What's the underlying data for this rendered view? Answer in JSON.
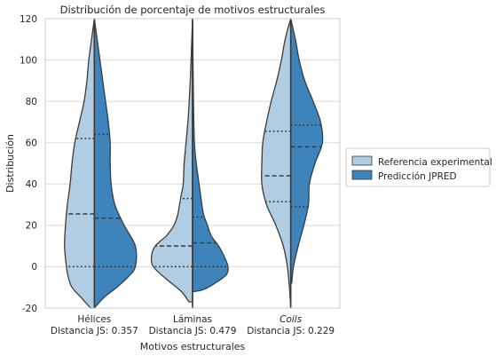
{
  "chart_data": {
    "type": "violin",
    "title": "Distribución de porcentaje de motivos estructurales",
    "xlabel": "Motivos estructurales",
    "ylabel": "Distribución",
    "ylim": [
      -20,
      120
    ],
    "yticks": [
      -20,
      0,
      20,
      40,
      60,
      80,
      100,
      120
    ],
    "grid": "horizontal",
    "legend_position": "right",
    "categories": [
      {
        "name": "Hélices",
        "italic": false,
        "subtitle": "Distancia JS: 0.357"
      },
      {
        "name": "Láminas",
        "italic": false,
        "subtitle": "Distancia JS: 0.479"
      },
      {
        "name": "Coils",
        "italic": true,
        "subtitle": "Distancia JS: 0.229"
      }
    ],
    "series": [
      {
        "name": "Referencia experimental",
        "color": "#b0cde3",
        "side": "left",
        "groups": [
          {
            "q1": 0,
            "median": 25.5,
            "q3": 62,
            "profile": [
              [
                -20,
                2
              ],
              [
                -15,
                7
              ],
              [
                -10,
                12
              ],
              [
                -5,
                14
              ],
              [
                0,
                15
              ],
              [
                10,
                16
              ],
              [
                20,
                15.5
              ],
              [
                30,
                14.5
              ],
              [
                40,
                13
              ],
              [
                50,
                12
              ],
              [
                60,
                10.5
              ],
              [
                70,
                8
              ],
              [
                80,
                5.5
              ],
              [
                90,
                4
              ],
              [
                100,
                3
              ],
              [
                110,
                1.5
              ],
              [
                120,
                0
              ]
            ]
          },
          {
            "q1": 0,
            "median": 10,
            "q3": 33,
            "profile": [
              [
                -17,
                2
              ],
              [
                -12,
                6
              ],
              [
                -6,
                14
              ],
              [
                0,
                21
              ],
              [
                5,
                22
              ],
              [
                10,
                20
              ],
              [
                15,
                14
              ],
              [
                20,
                10
              ],
              [
                25,
                8
              ],
              [
                30,
                7
              ],
              [
                35,
                6
              ],
              [
                40,
                5
              ],
              [
                50,
                4.5
              ],
              [
                60,
                3.5
              ],
              [
                70,
                2.5
              ],
              [
                80,
                1.8
              ],
              [
                95,
                1
              ],
              [
                120,
                0
              ]
            ]
          },
          {
            "q1": 31.5,
            "median": 44,
            "q3": 65.5,
            "profile": [
              [
                -20,
                0
              ],
              [
                -10,
                0.7
              ],
              [
                0,
                1.8
              ],
              [
                10,
                4
              ],
              [
                20,
                8
              ],
              [
                30,
                13
              ],
              [
                40,
                15.5
              ],
              [
                50,
                15.5
              ],
              [
                60,
                15
              ],
              [
                70,
                13
              ],
              [
                80,
                10.5
              ],
              [
                90,
                7.5
              ],
              [
                100,
                5
              ],
              [
                110,
                3
              ],
              [
                120,
                0
              ]
            ]
          }
        ]
      },
      {
        "name": "Predicción JPRED",
        "color": "#3e84ba",
        "side": "right",
        "groups": [
          {
            "q1": 0,
            "median": 23.5,
            "q3": 64,
            "profile": [
              [
                -20,
                0
              ],
              [
                -15,
                5
              ],
              [
                -10,
                12
              ],
              [
                -5,
                18
              ],
              [
                0,
                22
              ],
              [
                10,
                22
              ],
              [
                20,
                16
              ],
              [
                30,
                11
              ],
              [
                40,
                9
              ],
              [
                50,
                8.5
              ],
              [
                60,
                8.5
              ],
              [
                70,
                7.5
              ],
              [
                80,
                6
              ],
              [
                90,
                4.5
              ],
              [
                100,
                3
              ],
              [
                110,
                1.5
              ],
              [
                120,
                0
              ]
            ]
          },
          {
            "q1": 0,
            "median": 11.5,
            "q3": 24,
            "profile": [
              [
                -12,
                1
              ],
              [
                -11,
                6
              ],
              [
                -8,
                12
              ],
              [
                -4,
                18
              ],
              [
                0,
                19
              ],
              [
                5,
                17
              ],
              [
                10,
                14
              ],
              [
                15,
                10
              ],
              [
                20,
                8
              ],
              [
                25,
                6
              ],
              [
                30,
                5
              ],
              [
                40,
                3.5
              ],
              [
                50,
                2
              ],
              [
                60,
                1
              ],
              [
                80,
                0.5
              ],
              [
                120,
                0
              ]
            ]
          },
          {
            "q1": 29,
            "median": 58,
            "q3": 68.5,
            "profile": [
              [
                -8,
                0.5
              ],
              [
                0,
                1.5
              ],
              [
                10,
                4
              ],
              [
                20,
                7
              ],
              [
                30,
                9.5
              ],
              [
                40,
                10
              ],
              [
                50,
                13
              ],
              [
                60,
                17
              ],
              [
                70,
                16
              ],
              [
                80,
                12
              ],
              [
                90,
                7.5
              ],
              [
                100,
                4.5
              ],
              [
                110,
                2.5
              ],
              [
                120,
                0
              ]
            ]
          }
        ]
      }
    ]
  }
}
